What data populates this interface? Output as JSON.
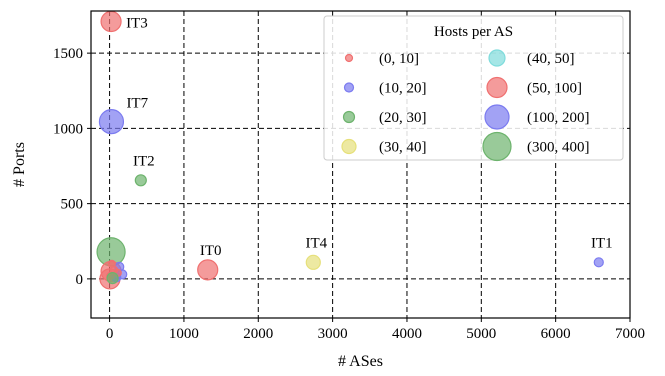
{
  "chart_data": {
    "type": "scatter",
    "title": "",
    "xlabel": "#  ASes",
    "ylabel": "#  Ports",
    "xlim": [
      -250,
      7000
    ],
    "ylim": [
      -260,
      1780
    ],
    "xticks": [
      0,
      1000,
      2000,
      3000,
      4000,
      5000,
      6000,
      7000
    ],
    "yticks": [
      0,
      500,
      1000,
      1500
    ],
    "grid": true,
    "grid_style": "dashed",
    "legend": {
      "title": "Hosts per AS",
      "placement": "top-right",
      "columns": 2,
      "entries": [
        {
          "label": "(0, 10]",
          "color": "#f07070",
          "size_rank": 1
        },
        {
          "label": "(10, 20]",
          "color": "#7b7bf0",
          "size_rank": 2
        },
        {
          "label": "(20, 30]",
          "color": "#6db36d",
          "size_rank": 3
        },
        {
          "label": "(30, 40]",
          "color": "#e6e07a",
          "size_rank": 4
        },
        {
          "label": "(40, 50]",
          "color": "#7fdcdc",
          "size_rank": 5
        },
        {
          "label": "(50, 100]",
          "color": "#f07070",
          "size_rank": 6
        },
        {
          "label": "(100, 200]",
          "color": "#7b7bf0",
          "size_rank": 7
        },
        {
          "label": "(300, 400]",
          "color": "#6db36d",
          "size_rank": 8
        }
      ]
    },
    "points": [
      {
        "x": 20,
        "y": 1710,
        "bin": "(50, 100]",
        "label": "IT3"
      },
      {
        "x": 25,
        "y": 1045,
        "bin": "(100, 200]",
        "label": "IT7"
      },
      {
        "x": 420,
        "y": 655,
        "bin": "(20, 30]",
        "label": "IT2"
      },
      {
        "x": 1320,
        "y": 60,
        "bin": "(50, 100]",
        "label": "IT0"
      },
      {
        "x": 2740,
        "y": 110,
        "bin": "(30, 40]",
        "label": "IT4"
      },
      {
        "x": 6580,
        "y": 110,
        "bin": "(10, 20]",
        "label": "IT1"
      },
      {
        "x": 20,
        "y": 180,
        "bin": "(300, 400]",
        "label": ""
      },
      {
        "x": 20,
        "y": 50,
        "bin": "(50, 100]",
        "label": ""
      },
      {
        "x": 5,
        "y": 0,
        "bin": "(50, 100]",
        "label": ""
      },
      {
        "x": 130,
        "y": 80,
        "bin": "(10, 20]",
        "label": ""
      },
      {
        "x": 170,
        "y": 30,
        "bin": "(10, 20]",
        "label": ""
      },
      {
        "x": 90,
        "y": 10,
        "bin": "(10, 20]",
        "label": ""
      },
      {
        "x": 60,
        "y": 60,
        "bin": "(0, 10]",
        "label": ""
      },
      {
        "x": 30,
        "y": 100,
        "bin": "(0, 10]",
        "label": ""
      },
      {
        "x": 10,
        "y": 20,
        "bin": "(0, 10]",
        "label": ""
      },
      {
        "x": 110,
        "y": 40,
        "bin": "(0, 10]",
        "label": ""
      },
      {
        "x": 40,
        "y": 5,
        "bin": "(20, 30]",
        "label": ""
      }
    ]
  }
}
